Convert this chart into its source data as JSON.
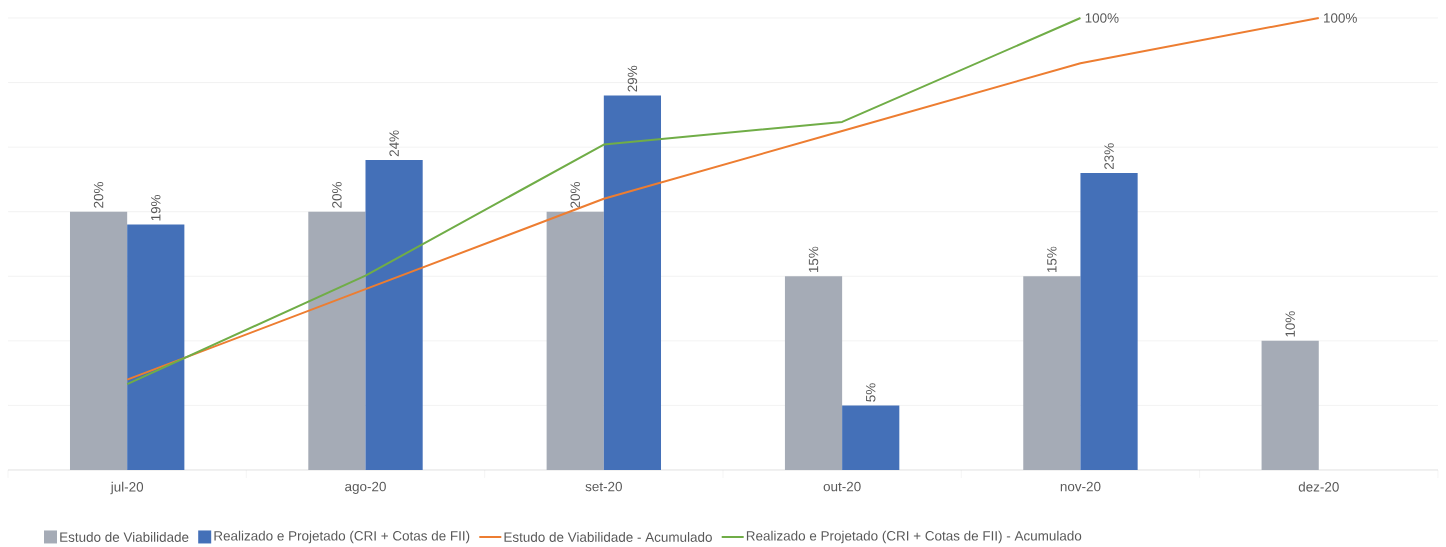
{
  "chart_data": {
    "type": "bar",
    "categories": [
      "jul-20",
      "ago-20",
      "set-20",
      "out-20",
      "nov-20",
      "dez-20"
    ],
    "series": [
      {
        "name": "Estudo de Viabilidade",
        "color": "#a5abb6",
        "values": [
          20,
          20,
          20,
          15,
          15,
          10
        ],
        "value_labels": [
          "20%",
          "20%",
          "20%",
          "15%",
          "15%",
          "10%"
        ]
      },
      {
        "name": "Realizado e Projetado (CRI + Cotas de FII)",
        "color": "#4470b8",
        "values": [
          19,
          24,
          29,
          5,
          23,
          null
        ],
        "value_labels": [
          "19%",
          "24%",
          "29%",
          "5%",
          "23%",
          null
        ]
      },
      {
        "name": "Estudo de Viabilidade - Acumulado",
        "type": "line",
        "axis": "y2",
        "color": "#ed7d31",
        "values": [
          20,
          40,
          60,
          75,
          90,
          100
        ],
        "value_labels": [
          null,
          null,
          null,
          null,
          null,
          "100%"
        ]
      },
      {
        "name": "Realizado e Projetado (CRI + Cotas de FII) - Acumulado",
        "type": "line",
        "axis": "y2",
        "color": "#70ad47",
        "values": [
          19,
          43,
          72,
          77,
          100,
          null
        ],
        "value_labels": [
          null,
          null,
          null,
          null,
          "100%",
          null
        ]
      }
    ],
    "ylim": [
      0,
      35
    ],
    "yticks": [
      0,
      5,
      10,
      15,
      20,
      25,
      30,
      35
    ],
    "y2lim": [
      0,
      100
    ],
    "grid": "y",
    "legend": "bottom",
    "tick_labels": "x"
  }
}
